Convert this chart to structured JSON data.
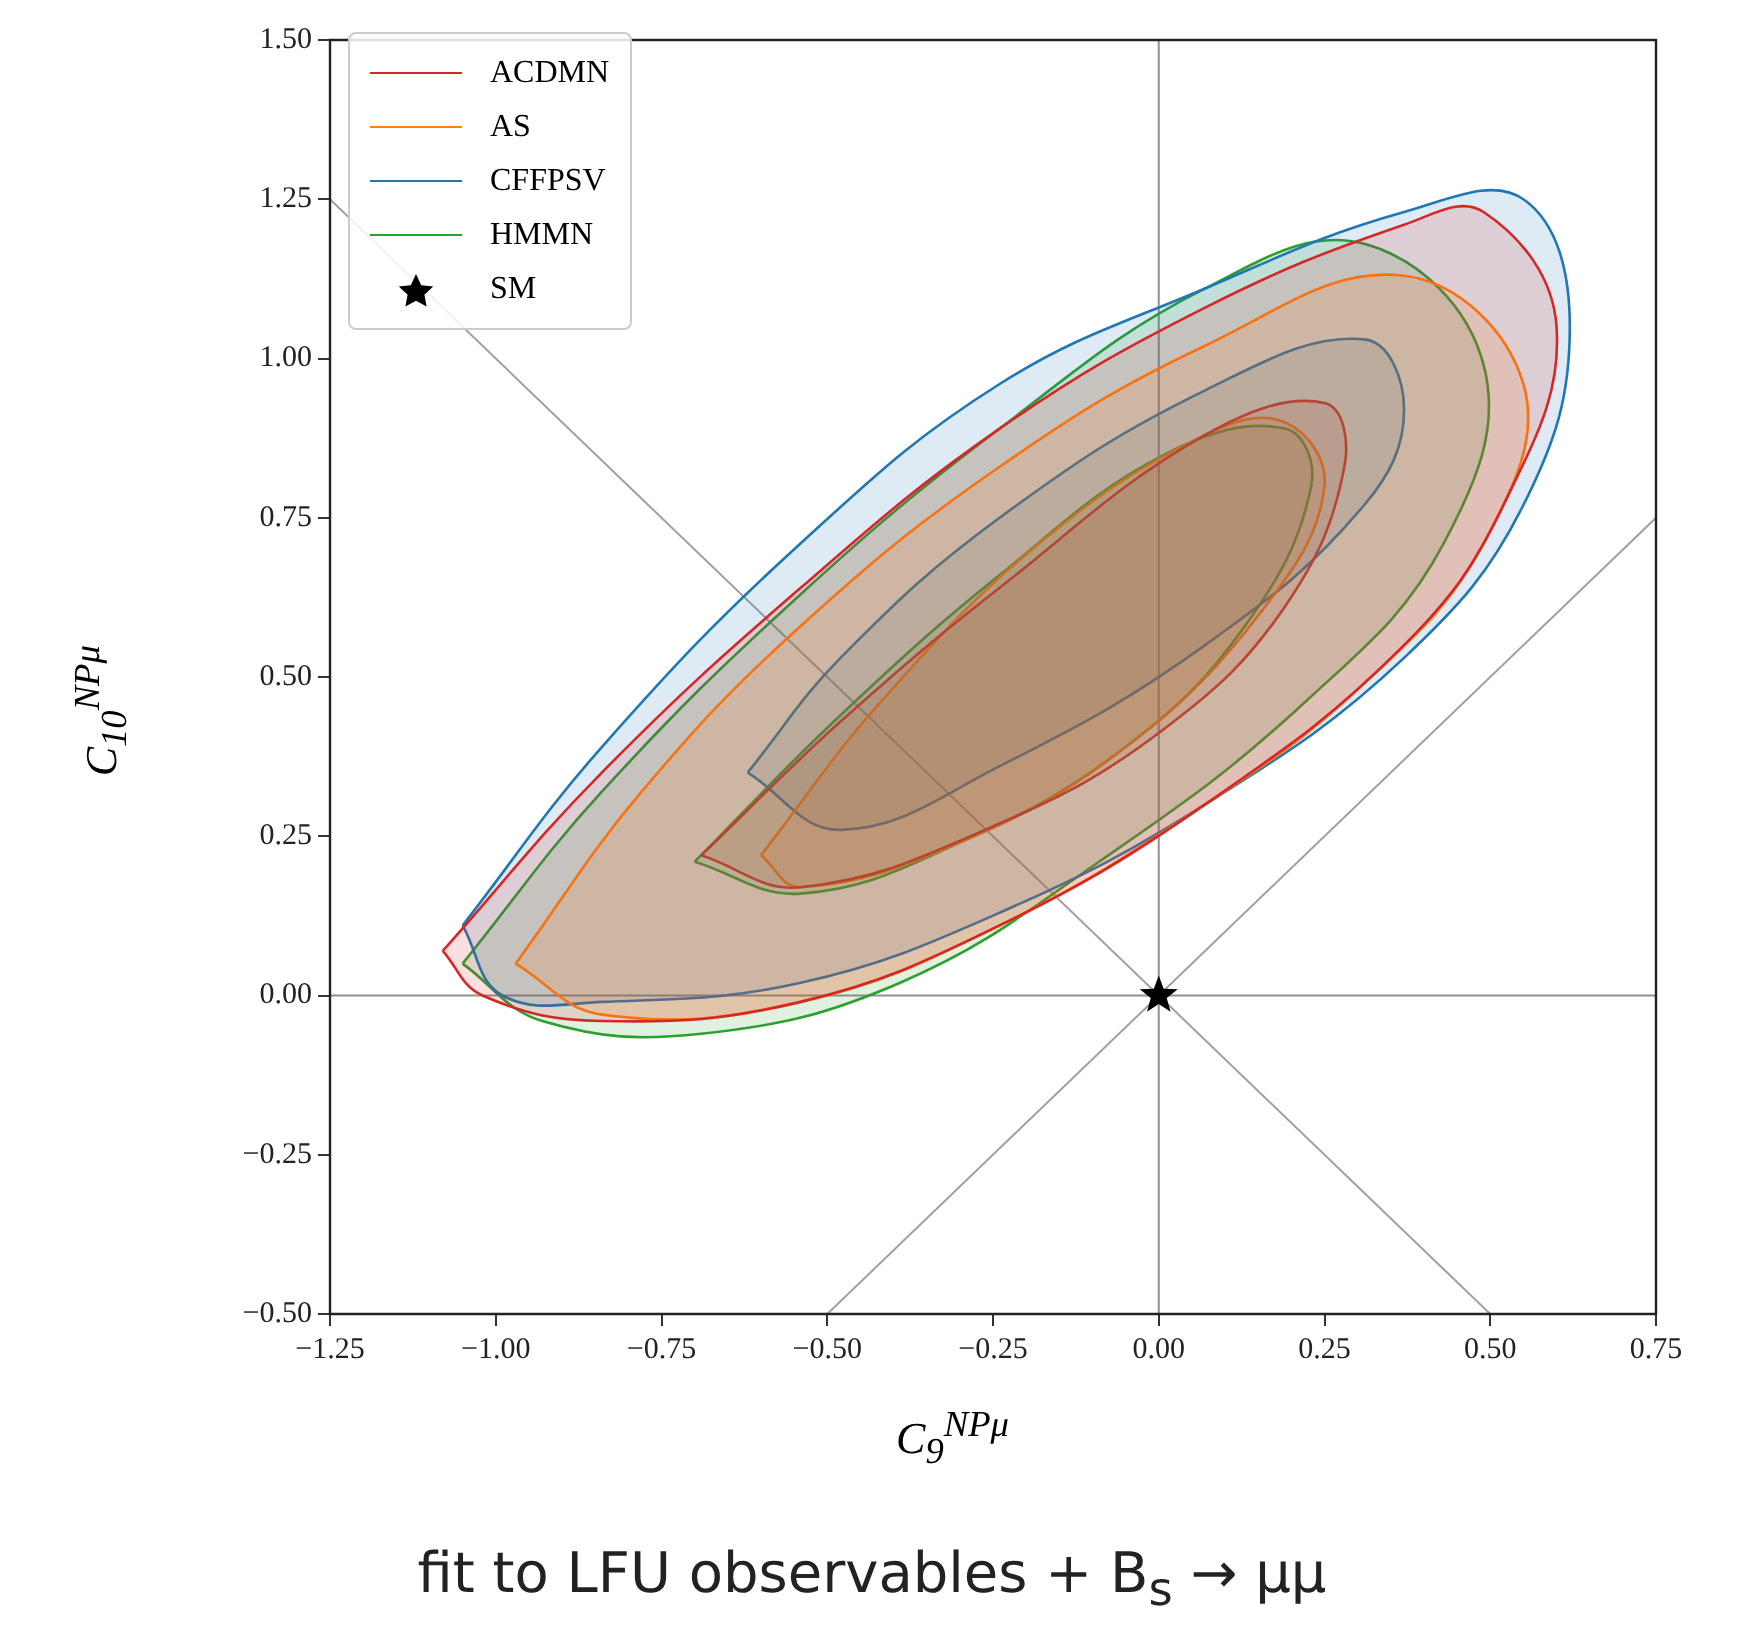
{
  "chart_data": {
    "type": "area",
    "title": "fit to LFU observables + B$_{s}$ → μμ",
    "xlabel": "C$_{9}$$^{NPμ}$",
    "ylabel": "C$_{10}$$^{NPμ}$",
    "xlim": [
      -1.25,
      0.75
    ],
    "ylim": [
      -0.5,
      1.5
    ],
    "xticks": [
      {
        "value": -1.25,
        "label": "−1.25"
      },
      {
        "value": -1,
        "label": "−1.00"
      },
      {
        "value": -0.75,
        "label": "−0.75"
      },
      {
        "value": -0.5,
        "label": "−0.50"
      },
      {
        "value": -0.25,
        "label": "−0.25"
      },
      {
        "value": 0,
        "label": "0.00"
      },
      {
        "value": 0.25,
        "label": "0.25"
      },
      {
        "value": 0.5,
        "label": "0.50"
      },
      {
        "value": 0.75,
        "label": "0.75"
      }
    ],
    "yticks": [
      {
        "value": -0.5,
        "label": "−0.50"
      },
      {
        "value": -0.25,
        "label": "−0.25"
      },
      {
        "value": 0,
        "label": "0.00"
      },
      {
        "value": 0.25,
        "label": "0.25"
      },
      {
        "value": 0.5,
        "label": "0.50"
      },
      {
        "value": 0.75,
        "label": "0.75"
      },
      {
        "value": 1,
        "label": "1.00"
      },
      {
        "value": 1.25,
        "label": "1.25"
      },
      {
        "value": 1.5,
        "label": "1.50"
      }
    ],
    "grid": false,
    "legend": "top left",
    "series": [
      {
        "type": "line",
        "color": "#909090",
        "x": [
          0,
          0
        ],
        "values": [
          -0.5,
          1.5
        ]
      },
      {
        "type": "line",
        "color": "#909090",
        "x": [
          -1.25,
          0.75
        ],
        "values": [
          0,
          0
        ]
      },
      {
        "type": "line",
        "color": "#a0a0a0",
        "x": [
          -1.25,
          0.5
        ],
        "values": [
          1.25,
          -0.5
        ]
      },
      {
        "type": "line",
        "color": "#a0a0a0",
        "x": [
          -0.5,
          0.75
        ],
        "values": [
          -0.5,
          0.75
        ]
      },
      {
        "name": "ACDMN",
        "color": "#d62728",
        "x": [
          -1.08,
          -0.84,
          -0.54,
          -0.24,
          0.07,
          0.37,
          0.49,
          0.6,
          0.52,
          0.37,
          0.07,
          -0.24,
          -0.54,
          -0.84,
          -1.02,
          -1.08
        ],
        "values": [
          0.07,
          0.35,
          0.64,
          0.89,
          1.08,
          1.21,
          1.23,
          1.05,
          0.77,
          0.55,
          0.3,
          0.11,
          -0.01,
          -0.04,
          0.0,
          0.07
        ]
      },
      {
        "name": "AS",
        "color": "#ff7f0e",
        "x": [
          -0.97,
          -0.78,
          -0.54,
          -0.24,
          0.07,
          0.37,
          0.55,
          0.49,
          0.31,
          0.07,
          -0.24,
          -0.54,
          -0.84,
          -0.97
        ],
        "values": [
          0.05,
          0.32,
          0.58,
          0.83,
          1.02,
          1.13,
          0.96,
          0.71,
          0.49,
          0.3,
          0.11,
          -0.01,
          -0.03,
          0.05
        ]
      },
      {
        "name": "CFFPSV",
        "color": "#1f77b4",
        "x": [
          -1.05,
          -0.84,
          -0.54,
          -0.24,
          0.07,
          0.37,
          0.55,
          0.62,
          0.55,
          0.37,
          0.07,
          -0.24,
          -0.54,
          -0.84,
          -0.99,
          -1.05
        ],
        "values": [
          0.11,
          0.39,
          0.71,
          0.96,
          1.11,
          1.23,
          1.25,
          1.05,
          0.77,
          0.53,
          0.3,
          0.13,
          0.02,
          -0.01,
          0.0,
          0.11
        ]
      },
      {
        "name": "HMMN",
        "color": "#2ca02c",
        "x": [
          -1.05,
          -0.84,
          -0.54,
          -0.24,
          0.07,
          0.31,
          0.49,
          0.43,
          0.22,
          -0.09,
          -0.39,
          -0.69,
          -0.93,
          -1.05
        ],
        "values": [
          0.05,
          0.32,
          0.63,
          0.89,
          1.11,
          1.18,
          0.99,
          0.71,
          0.46,
          0.21,
          0.02,
          -0.06,
          -0.04,
          0.05
        ]
      },
      {
        "color": "#d62728",
        "x": [
          -0.69,
          -0.48,
          -0.24,
          0.07,
          0.25,
          0.28,
          0.19,
          0.01,
          -0.24,
          -0.54,
          -0.69
        ],
        "values": [
          0.22,
          0.43,
          0.64,
          0.88,
          0.93,
          0.83,
          0.61,
          0.42,
          0.27,
          0.17,
          0.22
        ]
      },
      {
        "color": "#ff7f0e",
        "x": [
          -0.6,
          -0.42,
          -0.18,
          0.07,
          0.19,
          0.25,
          0.16,
          -0.05,
          -0.3,
          -0.54,
          -0.6
        ],
        "values": [
          0.22,
          0.46,
          0.71,
          0.88,
          0.9,
          0.8,
          0.61,
          0.39,
          0.24,
          0.17,
          0.22
        ]
      },
      {
        "color": "#1f77b4",
        "x": [
          -0.62,
          -0.48,
          -0.24,
          0.07,
          0.31,
          0.37,
          0.31,
          0.07,
          -0.24,
          -0.48,
          -0.62
        ],
        "values": [
          0.35,
          0.53,
          0.75,
          0.95,
          1.03,
          0.92,
          0.77,
          0.55,
          0.36,
          0.26,
          0.35
        ]
      },
      {
        "color": "#2ca02c",
        "x": [
          -0.7,
          -0.48,
          -0.24,
          0.01,
          0.19,
          0.23,
          0.13,
          -0.05,
          -0.3,
          -0.54,
          -0.7
        ],
        "values": [
          0.21,
          0.44,
          0.66,
          0.85,
          0.89,
          0.8,
          0.58,
          0.39,
          0.24,
          0.16,
          0.21
        ]
      },
      {
        "name": "SM",
        "type": "scatter",
        "marker": "star",
        "color": "#000000",
        "x": [
          0
        ],
        "values": [
          0
        ]
      }
    ]
  }
}
